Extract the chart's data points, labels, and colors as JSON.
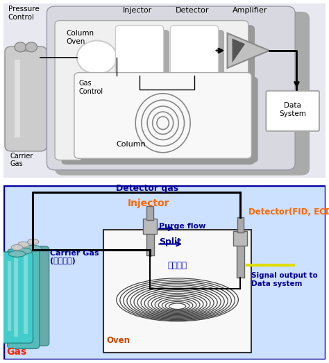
{
  "top_bg": "#e8e8f0",
  "top_border": "#5555aa",
  "main_box_color": "#d8d8e0",
  "main_box_shadow": "#aaaaaa",
  "oven_box_color": "#f0f0f0",
  "column_box_color": "#f8f8f8",
  "bot_bg": "#cce0ff",
  "bot_border": "#000099",
  "labels": {
    "pressure_control": "Pressure\nControl",
    "injector_top": "Injector",
    "detector_top": "Detector",
    "amplifier_top": "Amplifier",
    "carrier_gas": "Carrier\nGas",
    "gas_control": "Gas\nControl",
    "column_oven": "Column\nOven",
    "column": "Column",
    "data_system": "Data\nSystem",
    "detector_gas": "Detector gas",
    "injector": "Injector",
    "purge_flow": "Purge flow",
    "carrier_gas2": "Carrier Gas\n(운반가스)",
    "split": "Split",
    "column_kr": "분석콼럼",
    "oven": "Oven",
    "gas": "Gas",
    "detector_fid": "Detector(FID, ECD....)",
    "signal_output": "Signal output to\nData system"
  }
}
